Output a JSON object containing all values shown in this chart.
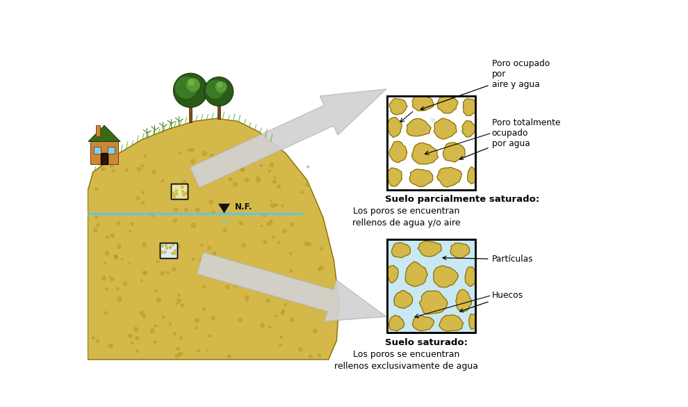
{
  "bg_color": "#ffffff",
  "soil_color": "#d4b84a",
  "soil_edge": "#8a7000",
  "water_color": "#5bc8e8",
  "pore_air_color": "#ffffff",
  "pore_water_color": "#c8e8f4",
  "arrow_fill": "#d2d2d2",
  "arrow_edge": "#b0b0b0",
  "grass_color": "#4a8a2a",
  "tree_trunk": "#7a4a1a",
  "tree_dark": "#2a5a18",
  "tree_mid": "#3a7a20",
  "tree_light": "#5a9a30",
  "house_wall": "#cc8833",
  "house_roof": "#3a6a18",
  "house_dark": "#884411",
  "label1_bold": "Suelo parcialmente saturado:",
  "label1_line2": "Los poros se encuentran",
  "label1_line3": "rellenos de agua y/o aire",
  "label2_bold": "Suelo saturado:",
  "label2_line2": "Los poros se encuentran",
  "label2_line3": "rellenos exclusivamente de agua",
  "annot1a_text": "Poro ocupado\npor\naire y agua",
  "annot1b_text": "Poro totalmente\nocupado\npor agua",
  "annot2a_text": "Partículas",
  "annot2b_text": "Huecos",
  "nf_label": "N.F.",
  "figure_size": [
    9.9,
    5.85
  ],
  "dpi": 100
}
